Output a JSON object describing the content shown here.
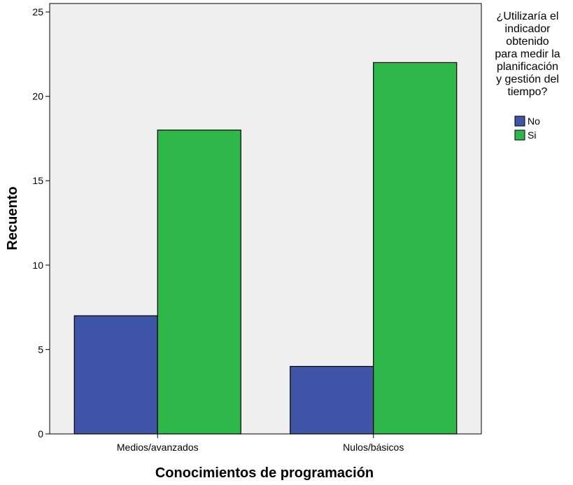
{
  "chart_data": {
    "type": "bar",
    "xlabel": "Conocimientos de programación",
    "ylabel": "Recuento",
    "categories": [
      "Medios/avanzados",
      "Nulos/básicos"
    ],
    "series": [
      {
        "name": "No",
        "values": [
          7,
          4
        ],
        "color": "#3f56a8"
      },
      {
        "name": "Si",
        "values": [
          18,
          22
        ],
        "color": "#2fb84a"
      }
    ],
    "ylim": [
      0,
      25.5
    ],
    "yticks": [
      0,
      5,
      10,
      15,
      20,
      25
    ],
    "grid": false,
    "plot_background": "#efefef",
    "legend": {
      "title_lines": [
        "¿Utilizaría el",
        "indicador",
        "obtenido",
        "para medir la",
        "planificación",
        "y gestión del",
        "tiempo?"
      ],
      "placement": "right"
    }
  }
}
